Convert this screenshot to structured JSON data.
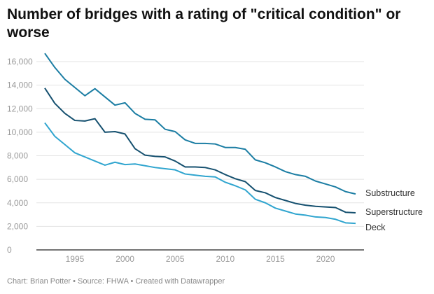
{
  "chart_data": {
    "type": "line",
    "title": "Number of bridges with a rating of \"critical condition\" or worse",
    "xlabel": "",
    "ylabel": "",
    "x": [
      1992,
      1993,
      1994,
      1995,
      1996,
      1997,
      1998,
      1999,
      2000,
      2001,
      2002,
      2003,
      2004,
      2005,
      2006,
      2007,
      2008,
      2009,
      2010,
      2011,
      2012,
      2013,
      2014,
      2015,
      2016,
      2017,
      2018,
      2019,
      2020,
      2021,
      2022,
      2023
    ],
    "ylim": [
      0,
      16000
    ],
    "xlim": [
      1992,
      2023
    ],
    "yticks": [
      "0",
      "2,000",
      "4,000",
      "6,000",
      "8,000",
      "10,000",
      "12,000",
      "14,000",
      "16,000"
    ],
    "ytick_values": [
      0,
      2000,
      4000,
      6000,
      8000,
      10000,
      12000,
      14000,
      16000
    ],
    "xticks": [
      "1995",
      "2000",
      "2005",
      "2010",
      "2015",
      "2020"
    ],
    "xtick_values": [
      1995,
      2000,
      2005,
      2010,
      2015,
      2020
    ],
    "grid": true,
    "legend": "direct labels at line ends (right)",
    "series": [
      {
        "name": "Substructure",
        "color": "#1b7da3",
        "values": [
          16700,
          15500,
          14500,
          13800,
          13100,
          13700,
          13000,
          12300,
          12500,
          11600,
          11100,
          11050,
          10250,
          10050,
          9350,
          9050,
          9050,
          9000,
          8700,
          8700,
          8550,
          7650,
          7400,
          7050,
          6650,
          6400,
          6250,
          5850,
          5600,
          5350,
          4950,
          4750
        ]
      },
      {
        "name": "Superstructure",
        "color": "#15506f",
        "values": [
          13750,
          12450,
          11600,
          11000,
          10950,
          11150,
          10000,
          10050,
          9850,
          8600,
          8050,
          7950,
          7900,
          7550,
          7050,
          7050,
          7000,
          6800,
          6400,
          6050,
          5800,
          5050,
          4850,
          4450,
          4200,
          3950,
          3800,
          3700,
          3650,
          3600,
          3200,
          3150
        ]
      },
      {
        "name": "Deck",
        "color": "#30a5cf",
        "values": [
          10800,
          9650,
          8950,
          8250,
          7900,
          7550,
          7200,
          7450,
          7250,
          7300,
          7150,
          7000,
          6900,
          6800,
          6450,
          6350,
          6250,
          6200,
          5750,
          5450,
          5100,
          4300,
          4000,
          3550,
          3300,
          3050,
          2950,
          2800,
          2750,
          2600,
          2300,
          2250
        ]
      }
    ]
  },
  "footer": "Chart: Brian Potter • Source: FHWA • Created with Datawrapper"
}
